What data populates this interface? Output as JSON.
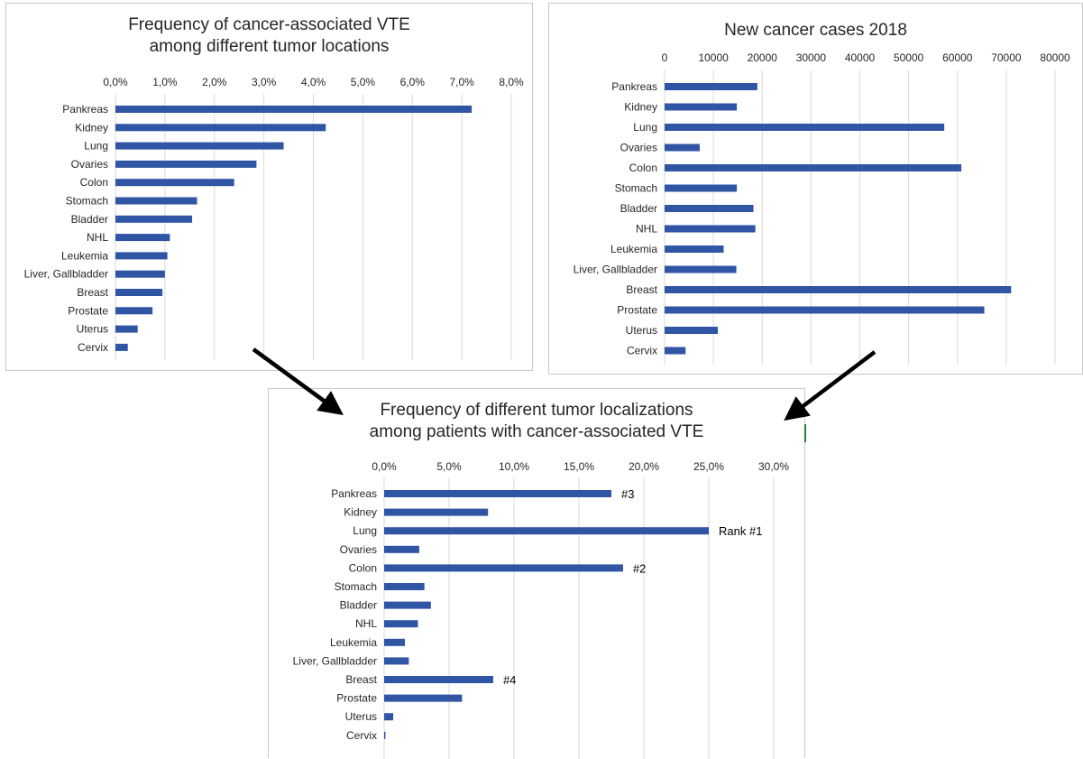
{
  "bar_color": "#2f55a4",
  "grid_color": "#d9d9d9",
  "text_color": "#262626",
  "chart_data": [
    {
      "type": "bar",
      "orientation": "horizontal",
      "title": "Frequency of cancer-associated VTE among different tumor locations",
      "title_lines": [
        "Frequency of cancer-associated VTE",
        "among different tumor locations"
      ],
      "categories": [
        "Pankreas",
        "Kidney",
        "Lung",
        "Ovaries",
        "Colon",
        "Stomach",
        "Bladder",
        "NHL",
        "Leukemia",
        "Liver, Gallbladder",
        "Breast",
        "Prostate",
        "Uterus",
        "Cervix"
      ],
      "values": [
        7.2,
        4.25,
        3.4,
        2.85,
        2.4,
        1.65,
        1.55,
        1.1,
        1.05,
        1.0,
        0.95,
        0.75,
        0.45,
        0.25
      ],
      "xlim": [
        0,
        8
      ],
      "ticks": [
        0,
        1,
        2,
        3,
        4,
        5,
        6,
        7,
        8
      ],
      "tick_labels": [
        "0,0%",
        "1,0%",
        "2,0%",
        "3,0%",
        "4,0%",
        "5,0%",
        "6,0%",
        "7,0%",
        "8,0%"
      ],
      "grid": true,
      "xlabel": "",
      "ylabel": ""
    },
    {
      "type": "bar",
      "orientation": "horizontal",
      "title": "New cancer cases 2018",
      "title_lines": [
        "New cancer cases 2018"
      ],
      "categories": [
        "Pankreas",
        "Kidney",
        "Lung",
        "Ovaries",
        "Colon",
        "Stomach",
        "Bladder",
        "NHL",
        "Leukemia",
        "Liver, Gallbladder",
        "Breast",
        "Prostate",
        "Uterus",
        "Cervix"
      ],
      "values": [
        19000,
        14800,
        57300,
        7200,
        60800,
        14800,
        18200,
        18600,
        12100,
        14700,
        71000,
        65500,
        10900,
        4300
      ],
      "xlim": [
        0,
        80000
      ],
      "ticks": [
        0,
        10000,
        20000,
        30000,
        40000,
        50000,
        60000,
        70000,
        80000
      ],
      "tick_labels": [
        "0",
        "10000",
        "20000",
        "30000",
        "40000",
        "50000",
        "60000",
        "70000",
        "80000"
      ],
      "grid": true,
      "xlabel": "",
      "ylabel": ""
    },
    {
      "type": "bar",
      "orientation": "horizontal",
      "title": "Frequency of different tumor localizations among patients with cancer-associated VTE",
      "title_lines": [
        "Frequency of different tumor localizations",
        "among patients with cancer-associated VTE"
      ],
      "categories": [
        "Pankreas",
        "Kidney",
        "Lung",
        "Ovaries",
        "Colon",
        "Stomach",
        "Bladder",
        "NHL",
        "Leukemia",
        "Liver, Gallbladder",
        "Breast",
        "Prostate",
        "Uterus",
        "Cervix"
      ],
      "values": [
        17.5,
        8.0,
        25.0,
        2.7,
        18.4,
        3.1,
        3.6,
        2.6,
        1.6,
        1.9,
        8.4,
        6.0,
        0.7,
        0.1
      ],
      "xlim": [
        0,
        30
      ],
      "ticks": [
        0,
        5,
        10,
        15,
        20,
        25,
        30
      ],
      "tick_labels": [
        "0,0%",
        "5,0%",
        "10,0%",
        "15,0%",
        "20,0%",
        "25,0%",
        "30,0%"
      ],
      "grid": true,
      "xlabel": "",
      "ylabel": "",
      "annotations": [
        {
          "category": "Pankreas",
          "text": "#3"
        },
        {
          "category": "Lung",
          "text": "Rank #1"
        },
        {
          "category": "Colon",
          "text": "#2"
        },
        {
          "category": "Breast",
          "text": "#4"
        }
      ]
    }
  ]
}
